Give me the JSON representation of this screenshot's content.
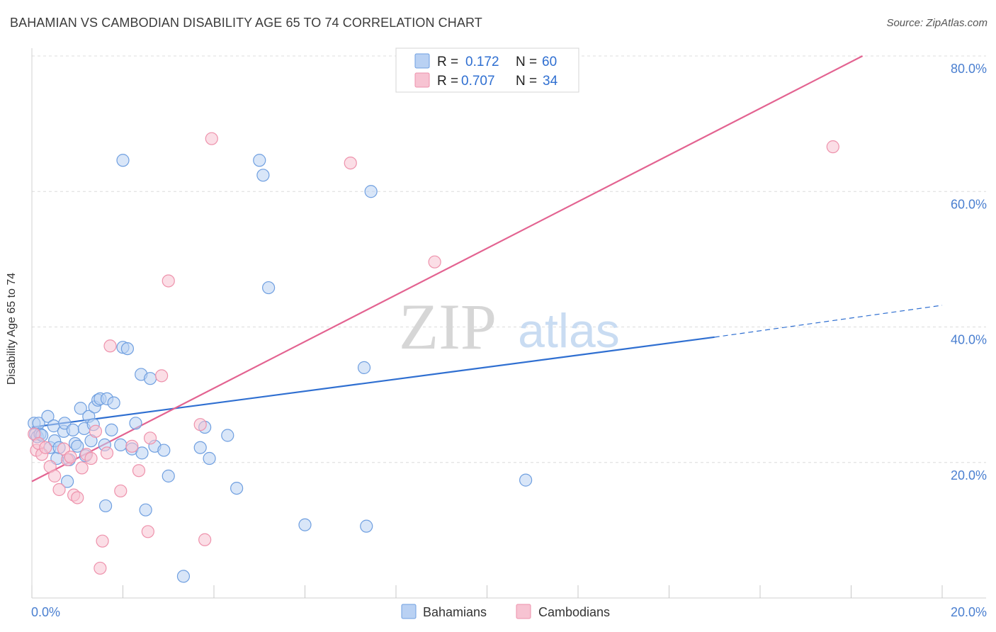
{
  "title": "BAHAMIAN VS CAMBODIAN DISABILITY AGE 65 TO 74 CORRELATION CHART",
  "source": "Source: ZipAtlas.com",
  "watermark": {
    "zip": "ZIP",
    "atlas": "atlas"
  },
  "chart_data": {
    "type": "scatter",
    "xlabel": "",
    "ylabel": "Disability Age 65 to 74",
    "xlim": [
      0,
      20
    ],
    "ylim": [
      0,
      80
    ],
    "x_tick_labels": [
      {
        "value": 0,
        "label": "0.0%"
      },
      {
        "value": 20,
        "label": "20.0%"
      }
    ],
    "y_tick_labels": [
      {
        "value": 20,
        "label": "20.0%"
      },
      {
        "value": 40,
        "label": "40.0%"
      },
      {
        "value": 60,
        "label": "60.0%"
      },
      {
        "value": 80,
        "label": "80.0%"
      }
    ],
    "legend_stats": [
      {
        "series": "Bahamians",
        "r_label": "R = ",
        "r": "0.172",
        "n_label": "N = ",
        "n": "60"
      },
      {
        "series": "Cambodians",
        "r_label": "R = ",
        "r": "0.707",
        "n_label": "N = ",
        "n": "34"
      }
    ],
    "series": [
      {
        "name": "Bahamians",
        "color": "#6f9fe0",
        "fill": "#b9d1f3",
        "line_color": "#2f6fd1",
        "trendline": {
          "x0": 0,
          "y0": 25.2,
          "x1": 15,
          "y1": 38.5,
          "dashed_to_x": 20,
          "dashed_to_y": 43.2
        },
        "points": [
          [
            0.05,
            25.8
          ],
          [
            0.08,
            24.2
          ],
          [
            0.12,
            23.8
          ],
          [
            0.15,
            25.8
          ],
          [
            0.18,
            24.2
          ],
          [
            0.22,
            24.0
          ],
          [
            0.35,
            26.8
          ],
          [
            0.4,
            22.2
          ],
          [
            0.48,
            25.4
          ],
          [
            0.5,
            23.2
          ],
          [
            0.55,
            20.6
          ],
          [
            0.6,
            22.2
          ],
          [
            0.7,
            24.6
          ],
          [
            0.72,
            25.8
          ],
          [
            0.78,
            17.2
          ],
          [
            0.82,
            20.4
          ],
          [
            0.9,
            24.8
          ],
          [
            0.95,
            22.8
          ],
          [
            1.0,
            22.4
          ],
          [
            1.07,
            28.0
          ],
          [
            1.15,
            25.0
          ],
          [
            1.18,
            21.0
          ],
          [
            1.25,
            26.8
          ],
          [
            1.3,
            23.2
          ],
          [
            1.35,
            25.6
          ],
          [
            1.38,
            28.2
          ],
          [
            1.45,
            29.2
          ],
          [
            1.5,
            29.4
          ],
          [
            1.6,
            22.6
          ],
          [
            1.62,
            13.6
          ],
          [
            1.65,
            29.4
          ],
          [
            1.75,
            24.8
          ],
          [
            1.8,
            28.8
          ],
          [
            1.95,
            22.6
          ],
          [
            2.0,
            64.6
          ],
          [
            2.0,
            37.0
          ],
          [
            2.1,
            36.8
          ],
          [
            2.2,
            22.0
          ],
          [
            2.28,
            25.8
          ],
          [
            2.4,
            33.0
          ],
          [
            2.42,
            21.4
          ],
          [
            2.5,
            13.0
          ],
          [
            2.6,
            32.4
          ],
          [
            2.7,
            22.4
          ],
          [
            2.9,
            21.8
          ],
          [
            3.0,
            18.0
          ],
          [
            3.33,
            3.2
          ],
          [
            3.7,
            22.2
          ],
          [
            3.8,
            25.2
          ],
          [
            3.9,
            20.6
          ],
          [
            4.3,
            24.0
          ],
          [
            4.5,
            16.2
          ],
          [
            5.0,
            64.6
          ],
          [
            5.08,
            62.4
          ],
          [
            5.2,
            45.8
          ],
          [
            6.0,
            10.8
          ],
          [
            7.3,
            34.0
          ],
          [
            7.35,
            10.6
          ],
          [
            7.45,
            60.0
          ],
          [
            10.85,
            17.4
          ]
        ]
      },
      {
        "name": "Cambodians",
        "color": "#ee92ac",
        "fill": "#f7c3d2",
        "line_color": "#e36391",
        "trendline": {
          "x0": 0,
          "y0": 17.2,
          "x1": 18.25,
          "y1": 80.0
        },
        "points": [
          [
            0.05,
            24.2
          ],
          [
            0.1,
            21.8
          ],
          [
            0.15,
            22.8
          ],
          [
            0.22,
            21.2
          ],
          [
            0.3,
            22.2
          ],
          [
            0.4,
            19.4
          ],
          [
            0.5,
            18.0
          ],
          [
            0.6,
            16.0
          ],
          [
            0.7,
            22.0
          ],
          [
            0.78,
            20.4
          ],
          [
            0.85,
            20.8
          ],
          [
            0.92,
            15.2
          ],
          [
            1.0,
            14.8
          ],
          [
            1.1,
            19.2
          ],
          [
            1.2,
            21.2
          ],
          [
            1.3,
            20.6
          ],
          [
            1.4,
            24.6
          ],
          [
            1.5,
            4.4
          ],
          [
            1.55,
            8.4
          ],
          [
            1.65,
            21.4
          ],
          [
            1.72,
            37.2
          ],
          [
            1.95,
            15.8
          ],
          [
            2.2,
            22.4
          ],
          [
            2.35,
            18.8
          ],
          [
            2.55,
            9.8
          ],
          [
            2.6,
            23.6
          ],
          [
            2.85,
            32.8
          ],
          [
            3.0,
            46.8
          ],
          [
            3.7,
            25.6
          ],
          [
            3.8,
            8.6
          ],
          [
            3.95,
            67.8
          ],
          [
            7.0,
            64.2
          ],
          [
            8.85,
            49.6
          ],
          [
            17.6,
            66.6
          ]
        ]
      }
    ]
  }
}
